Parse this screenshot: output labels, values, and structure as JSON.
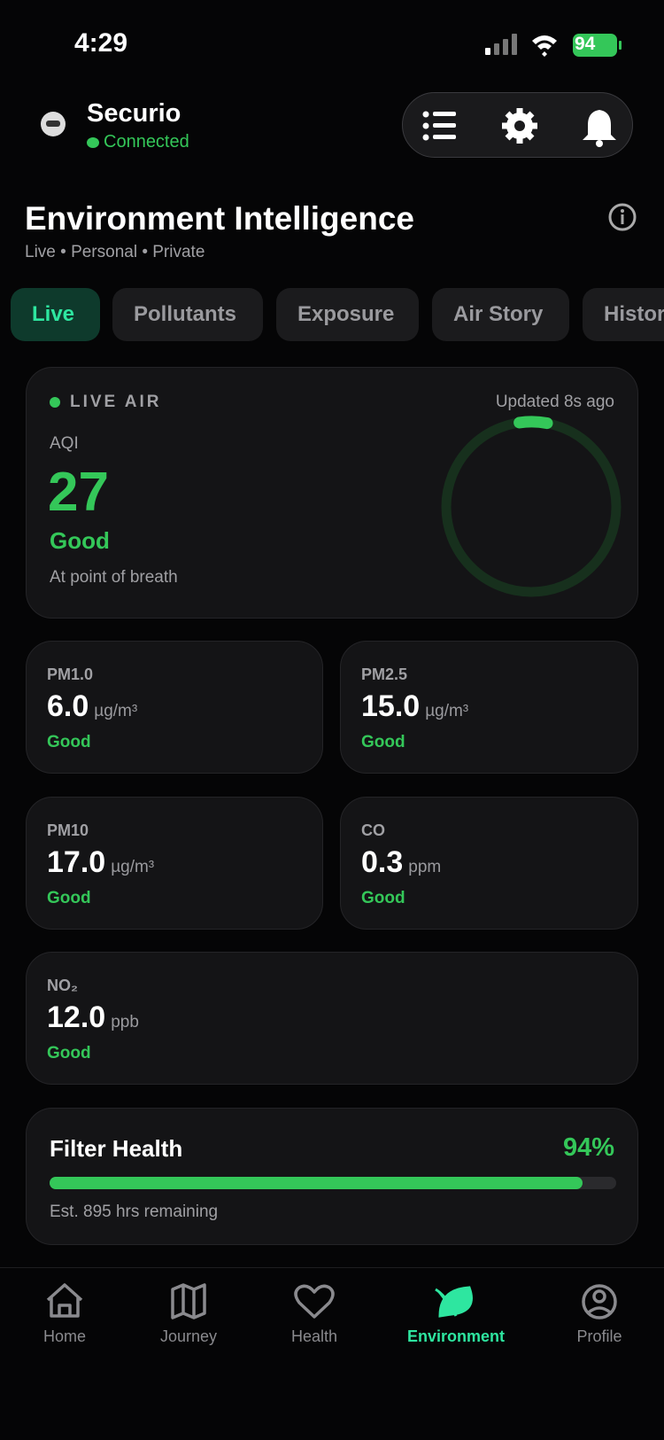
{
  "status_bar": {
    "time": "4:29",
    "battery": "94"
  },
  "header": {
    "app_name": "Securio",
    "status": "Connected"
  },
  "page": {
    "title": "Environment Intelligence",
    "subtitle": "Live • Personal • Private"
  },
  "tabs": [
    "Live",
    "Pollutants",
    "Exposure",
    "Air Story",
    "History"
  ],
  "live_card": {
    "label": "LIVE AIR",
    "updated": "Updated 8s ago",
    "metric": "AQI",
    "value": "27",
    "rating": "Good",
    "note": "At point of breath"
  },
  "metrics": [
    {
      "name": "PM1.0",
      "value": "6.0",
      "unit": "µg/m³",
      "rating": "Good"
    },
    {
      "name": "PM2.5",
      "value": "15.0",
      "unit": "µg/m³",
      "rating": "Good"
    },
    {
      "name": "PM10",
      "value": "17.0",
      "unit": "µg/m³",
      "rating": "Good"
    },
    {
      "name": "CO",
      "value": "0.3",
      "unit": "ppm",
      "rating": "Good"
    },
    {
      "name": "NO₂",
      "value": "12.0",
      "unit": "ppb",
      "rating": "Good"
    }
  ],
  "filter": {
    "title": "Filter Health",
    "value": 94,
    "value_label": "94%",
    "note": "Est. 895 hrs remaining"
  },
  "nav": [
    "Home",
    "Journey",
    "Health",
    "Environment",
    "Profile"
  ]
}
